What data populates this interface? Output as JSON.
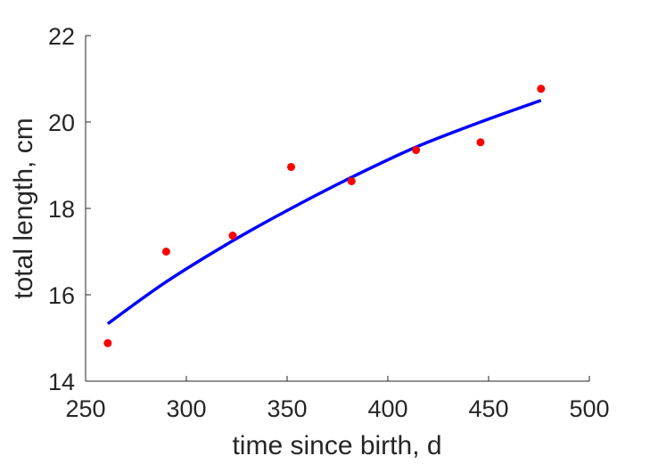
{
  "chart_data": {
    "type": "scatter",
    "xlabel": "time since birth, d",
    "ylabel": "total length, cm",
    "xlim": [
      250,
      500
    ],
    "ylim": [
      14,
      22
    ],
    "xticks": [
      250,
      300,
      350,
      400,
      450,
      500
    ],
    "yticks": [
      14,
      16,
      18,
      20,
      22
    ],
    "xtick_labels": [
      "250",
      "300",
      "350",
      "400",
      "450",
      "500"
    ],
    "ytick_labels": [
      "14",
      "16",
      "18",
      "20",
      "22"
    ],
    "grid": false,
    "legend": "none",
    "series": [
      {
        "kind": "scatter",
        "color": "#ff0000",
        "x": [
          261,
          290,
          323,
          352,
          382,
          414,
          446,
          476
        ],
        "y": [
          14.88,
          17.0,
          17.37,
          18.96,
          18.63,
          19.35,
          19.53,
          20.77
        ]
      },
      {
        "kind": "line",
        "color": "#0000ff",
        "x": [
          261,
          290,
          323,
          352,
          382,
          414,
          446,
          476
        ],
        "y": [
          15.33,
          16.3,
          17.25,
          18.0,
          18.72,
          19.42,
          20.0,
          20.5
        ]
      }
    ]
  }
}
